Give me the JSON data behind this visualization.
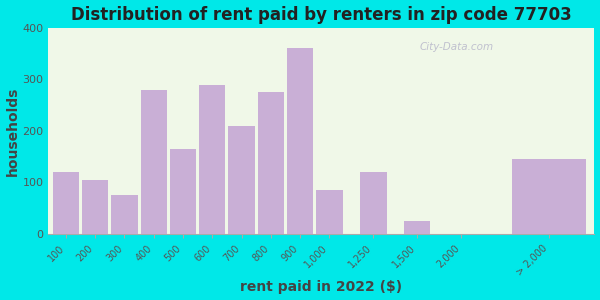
{
  "title": "Distribution of rent paid by renters in zip code 77703",
  "xlabel": "rent paid in 2022 ($)",
  "ylabel": "households",
  "bar_labels": [
    "100",
    "200",
    "300",
    "400",
    "500",
    "600",
    "700",
    "800",
    "900",
    "1,000",
    "1,250",
    "1,500",
    "2,000",
    "> 2,000"
  ],
  "bar_values": [
    120,
    105,
    75,
    280,
    165,
    290,
    210,
    275,
    360,
    85,
    120,
    25,
    0,
    145
  ],
  "bar_color": "#c9afd6",
  "bg_outer": "#00e8e8",
  "bg_plot_top": "#f0f8e8",
  "bg_plot_bottom": "#e8f8f0",
  "ylim": [
    0,
    400
  ],
  "yticks": [
    0,
    100,
    200,
    300,
    400
  ],
  "watermark": "City-Data.com",
  "title_fontsize": 12,
  "axis_label_fontsize": 10,
  "x_positions": [
    0,
    1,
    2,
    3,
    4,
    5,
    6,
    7,
    8,
    9,
    10.5,
    12,
    13.5,
    16.5
  ],
  "bar_width": 0.9,
  "last_bar_width": 2.5
}
